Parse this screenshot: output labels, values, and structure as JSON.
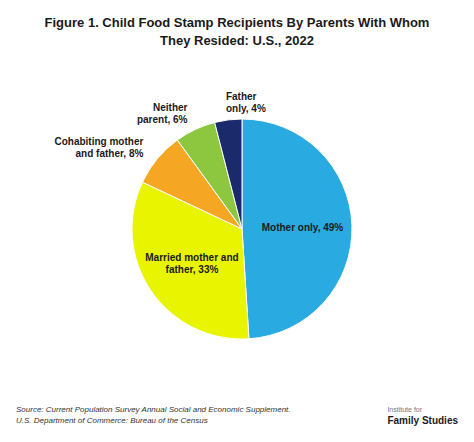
{
  "chart_data": {
    "type": "pie",
    "title": "Figure 1. Child Food Stamp Recipients By Parents With Whom\nThey Resided: U.S., 2022",
    "categories": [
      "Mother only, 49%",
      "Married mother and\nfather, 33%",
      "Cohabiting mother\nand father, 8%",
      "Neither\nparent, 6%",
      "Father\nonly, 4%"
    ],
    "values": [
      49,
      33,
      8,
      6,
      4
    ],
    "colors": [
      "#29ABE2",
      "#E8F400",
      "#F5A623",
      "#8DC63F",
      "#1B2A6B"
    ],
    "annotations": [
      "Source: Current Population Survey Annual Social and Economic Supplement.",
      "U.S. Department of Commerce: Bureau of the Census",
      "Institute for",
      "Family Studies"
    ]
  }
}
